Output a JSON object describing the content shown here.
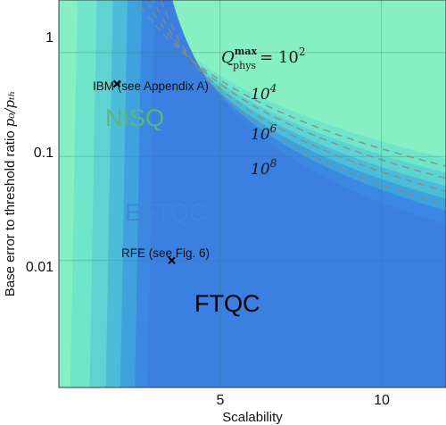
{
  "chart_data": {
    "type": "area",
    "xlabel": "Scalability",
    "ylabel_text": "Base error to threshold ratio ",
    "ylabel_math": "p₀/pₜₕ",
    "x_ticks": [
      "5",
      "10"
    ],
    "y_ticks": [
      "1",
      "0.1",
      "0.01"
    ],
    "y_scale": "log",
    "xlim": [
      0,
      12
    ],
    "ylim": [
      0.0006,
      3.2
    ],
    "grid": true,
    "regions": [
      {
        "label": "NISQ",
        "color": "#58b878"
      },
      {
        "label": "EFTQC",
        "color": "#3f86dc"
      },
      {
        "label": "FTQC",
        "color": "#000000"
      }
    ],
    "contours": [
      {
        "label_base": "Q",
        "label_sup": "max",
        "label_sub": "phys",
        "label_eq": "= 10",
        "label_exp": "2",
        "value": "10^2"
      },
      {
        "label_base": "10",
        "label_exp": "4",
        "value": "10^4"
      },
      {
        "label_base": "10",
        "label_exp": "6",
        "value": "10^6"
      },
      {
        "label_base": "10",
        "label_exp": "8",
        "value": "10^8"
      }
    ],
    "points": [
      {
        "label": "IBM (see Appendix A)",
        "x": 1.8,
        "y": 0.5,
        "marker": "x"
      },
      {
        "label": "RFE (see Fig. 6)",
        "x": 3.5,
        "y": 0.01,
        "marker": "x"
      }
    ],
    "colors": {
      "background": "#86f0c3",
      "band1": "#71e5c9",
      "band2": "#5fd3d1",
      "band3": "#4dbcd8",
      "band4": "#3fa2df",
      "band5": "#3a88e2",
      "ftqc": "#3b7fe0"
    }
  }
}
